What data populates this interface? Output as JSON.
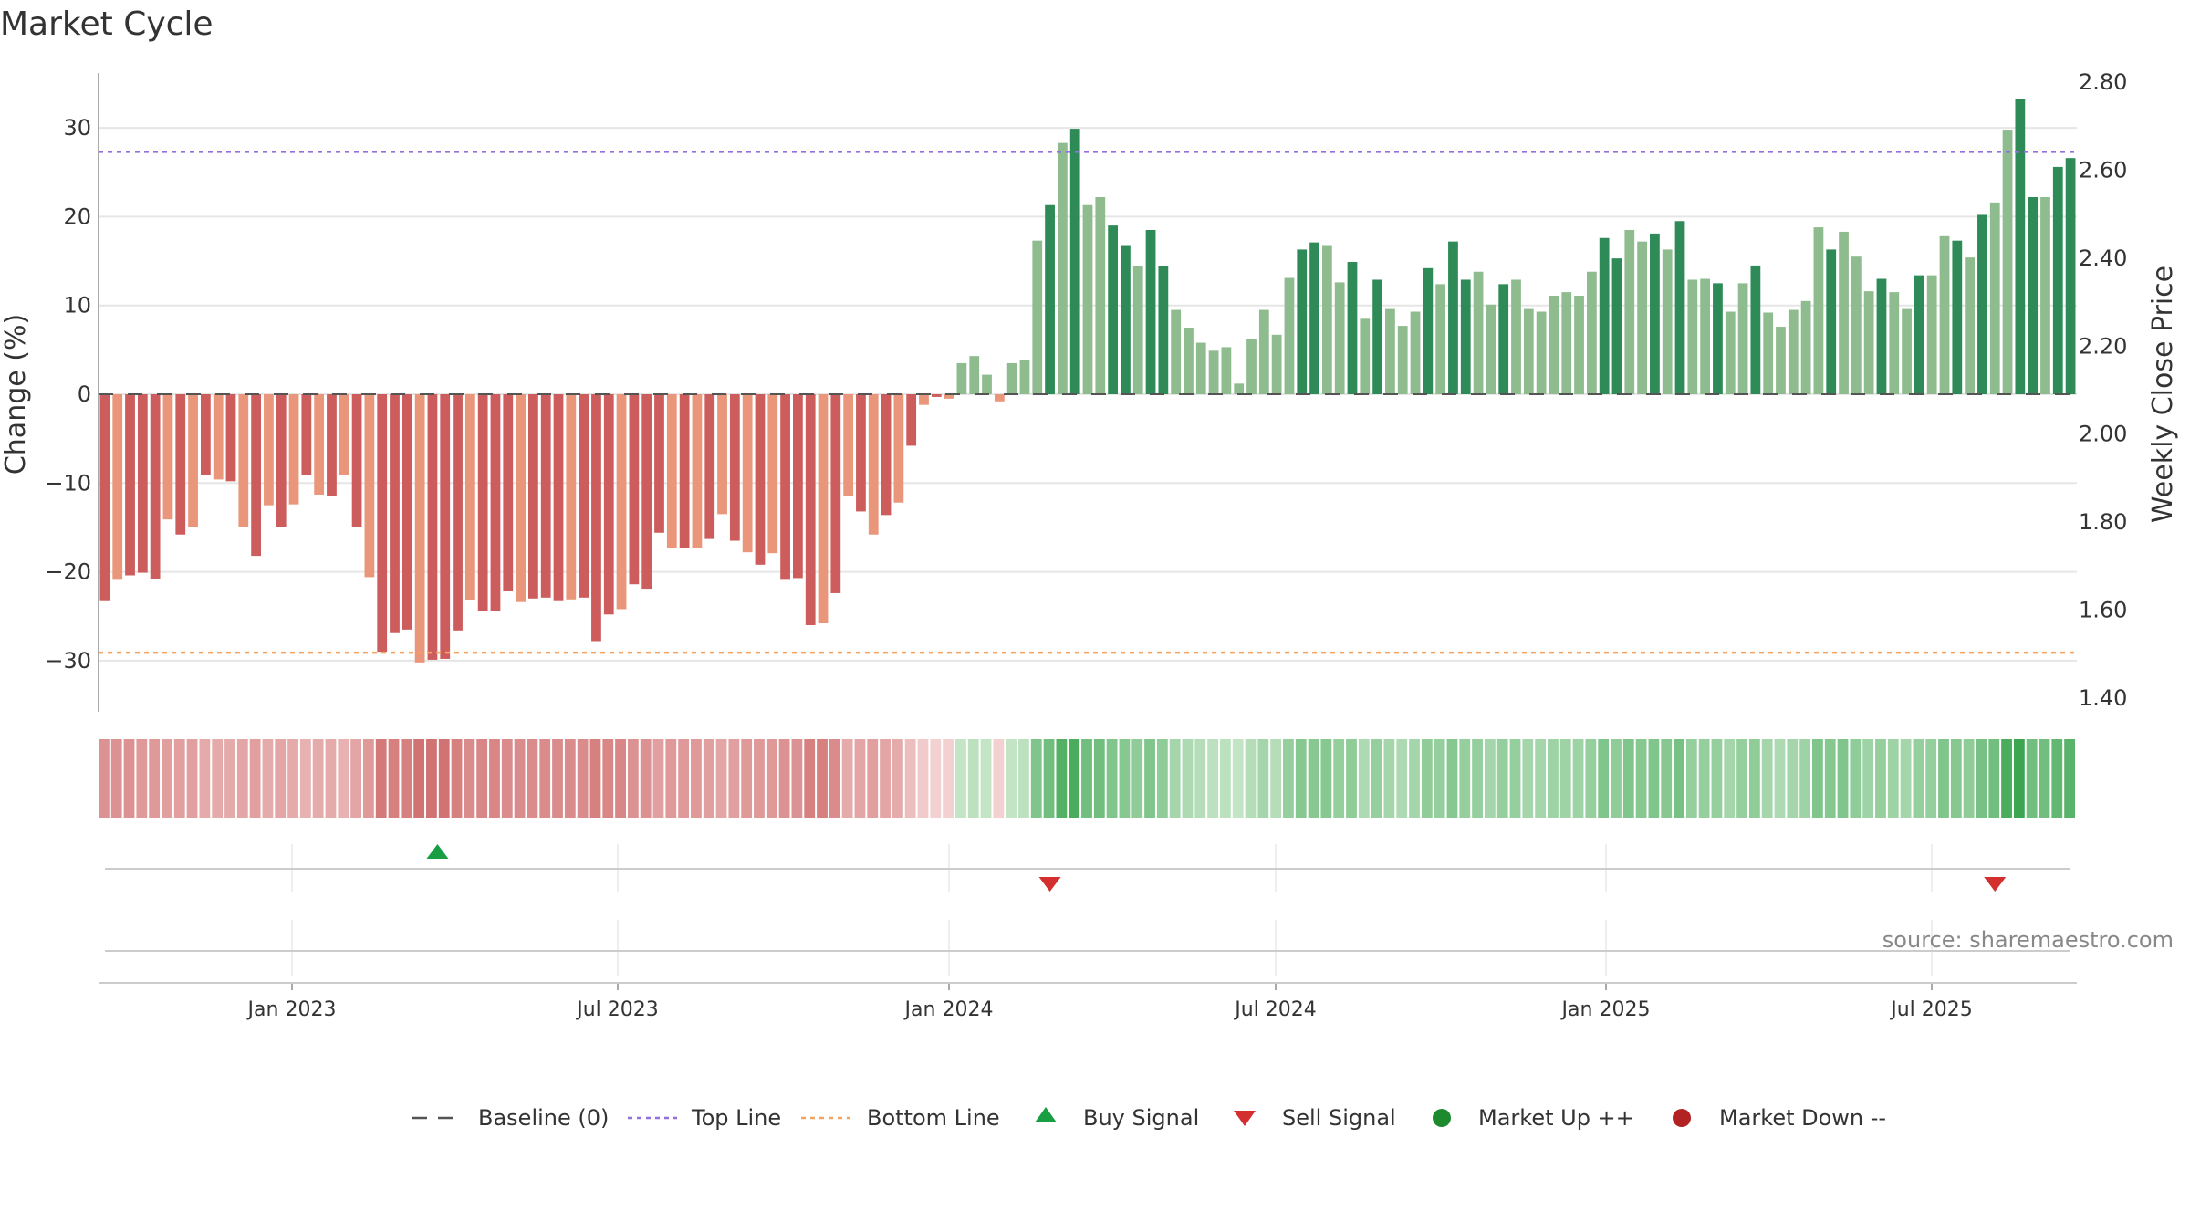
{
  "title": "Market Cycle",
  "source": "source: sharemaestro.com",
  "colors": {
    "neg_dark": "#cd5c5c",
    "neg_light": "#e9967a",
    "pos_dark": "#2e8b57",
    "pos_light": "#8fbc8f",
    "top_line": "#9370db",
    "bottom_line": "#f4a460",
    "baseline": "#555555",
    "buy": "#1a9e44",
    "sell": "#d32f2f",
    "market_up": "#1e8a2e",
    "market_down": "#b22222",
    "grid": "#e6e6e6"
  },
  "legend": [
    {
      "label": "Baseline (0)",
      "kind": "dash-line"
    },
    {
      "label": "Top Line",
      "kind": "dotted-purple"
    },
    {
      "label": "Bottom Line",
      "kind": "dotted-orange"
    },
    {
      "label": "Buy Signal",
      "kind": "triangle-up"
    },
    {
      "label": "Sell Signal",
      "kind": "triangle-down"
    },
    {
      "label": "Market Up ++",
      "kind": "dot-green"
    },
    {
      "label": "Market Down --",
      "kind": "dot-red"
    }
  ],
  "chart_data": {
    "type": "bar",
    "ylabel": "Change (%)",
    "y2label": "Weekly Close Price",
    "ylim": [
      -36,
      36
    ],
    "yticks": [
      30,
      20,
      10,
      0,
      -10,
      -20,
      -30
    ],
    "ytick_labels": [
      "30",
      "20",
      "10",
      "0",
      "−10",
      "−20",
      "−30"
    ],
    "y2lim": [
      1.4,
      2.8
    ],
    "y2ticks": [
      "2.80",
      "2.60",
      "2.40",
      "2.20",
      "2.00",
      "1.80",
      "1.60",
      "1.40"
    ],
    "top_line": 27.3,
    "bottom_line": -29.1,
    "xticks": [
      "Jan 2023",
      "Jul 2023",
      "Jan 2024",
      "Jul 2024",
      "Jan 2025",
      "Jul 2025"
    ],
    "values": [
      -23.3,
      -20.9,
      -20.4,
      -20.1,
      -20.8,
      -14.1,
      -15.8,
      -15.0,
      -9.1,
      -9.6,
      -9.8,
      -14.9,
      -18.2,
      -12.5,
      -14.9,
      -12.4,
      -9.1,
      -11.3,
      -11.5,
      -9.1,
      -14.9,
      -20.6,
      -29.0,
      -26.9,
      -26.5,
      -30.2,
      -29.9,
      -29.8,
      -26.6,
      -23.2,
      -24.4,
      -24.4,
      -22.2,
      -23.4,
      -23.0,
      -22.9,
      -23.3,
      -23.1,
      -22.9,
      -27.8,
      -24.8,
      -24.2,
      -21.4,
      -21.9,
      -15.6,
      -17.3,
      -17.3,
      -17.3,
      -16.3,
      -13.5,
      -16.5,
      -17.8,
      -19.2,
      -17.9,
      -20.9,
      -20.7,
      -26.0,
      -25.8,
      -22.4,
      -11.5,
      -13.2,
      -15.8,
      -13.6,
      -12.2,
      -5.8,
      -1.2,
      -0.3,
      -0.5,
      3.5,
      4.3,
      2.2,
      -0.8,
      3.5,
      3.9,
      17.3,
      21.3,
      28.3,
      29.9,
      21.3,
      22.2,
      19.0,
      16.7,
      14.4,
      18.5,
      14.4,
      9.5,
      7.5,
      5.8,
      4.9,
      5.3,
      1.2,
      6.2,
      9.5,
      6.7,
      13.1,
      16.3,
      17.1,
      16.7,
      12.6,
      14.9,
      8.5,
      12.9,
      9.6,
      7.7,
      9.3,
      14.2,
      12.4,
      17.2,
      12.9,
      13.8,
      10.1,
      12.4,
      12.9,
      9.6,
      9.3,
      11.1,
      11.5,
      11.1,
      13.8,
      17.6,
      15.3,
      18.5,
      17.2,
      18.1,
      16.3,
      19.5,
      12.9,
      13.0,
      12.5,
      9.3,
      12.5,
      14.5,
      9.2,
      7.6,
      9.5,
      10.5,
      18.8,
      16.3,
      18.3,
      15.5,
      11.6,
      13.0,
      11.5,
      9.6,
      13.4,
      13.4,
      17.8,
      17.3,
      15.4,
      20.2,
      21.6,
      29.8,
      33.3,
      22.2,
      22.2,
      25.6,
      26.6
    ],
    "shading": [
      0.55,
      0.55,
      0.55,
      0.5,
      0.5,
      0.45,
      0.45,
      0.45,
      0.35,
      0.35,
      0.35,
      0.4,
      0.45,
      0.35,
      0.4,
      0.35,
      0.3,
      0.35,
      0.35,
      0.3,
      0.4,
      0.5,
      0.75,
      0.7,
      0.7,
      0.8,
      0.8,
      0.8,
      0.7,
      0.6,
      0.65,
      0.65,
      0.6,
      0.6,
      0.6,
      0.6,
      0.6,
      0.6,
      0.6,
      0.7,
      0.65,
      0.65,
      0.55,
      0.55,
      0.45,
      0.5,
      0.5,
      0.5,
      0.45,
      0.4,
      0.45,
      0.5,
      0.5,
      0.5,
      0.55,
      0.55,
      0.7,
      0.7,
      0.6,
      0.35,
      0.4,
      0.45,
      0.4,
      0.35,
      0.2,
      0.1,
      0.05,
      0.05,
      0.1,
      0.15,
      0.1,
      0.05,
      0.1,
      0.15,
      0.55,
      0.65,
      0.85,
      0.9,
      0.65,
      0.65,
      0.55,
      0.5,
      0.45,
      0.55,
      0.45,
      0.3,
      0.25,
      0.2,
      0.15,
      0.15,
      0.1,
      0.2,
      0.3,
      0.2,
      0.4,
      0.5,
      0.5,
      0.5,
      0.4,
      0.45,
      0.25,
      0.4,
      0.3,
      0.25,
      0.3,
      0.45,
      0.4,
      0.5,
      0.4,
      0.4,
      0.3,
      0.4,
      0.4,
      0.3,
      0.3,
      0.35,
      0.35,
      0.35,
      0.4,
      0.55,
      0.45,
      0.55,
      0.5,
      0.55,
      0.5,
      0.6,
      0.4,
      0.4,
      0.4,
      0.3,
      0.4,
      0.45,
      0.3,
      0.25,
      0.3,
      0.35,
      0.55,
      0.5,
      0.55,
      0.45,
      0.35,
      0.4,
      0.35,
      0.3,
      0.4,
      0.4,
      0.55,
      0.5,
      0.45,
      0.6,
      0.65,
      0.9,
      1.0,
      0.65,
      0.65,
      0.75,
      0.8
    ],
    "buy_signals": [
      25
    ],
    "sell_signals": [
      75,
      150
    ],
    "market_up": [],
    "market_down": []
  }
}
